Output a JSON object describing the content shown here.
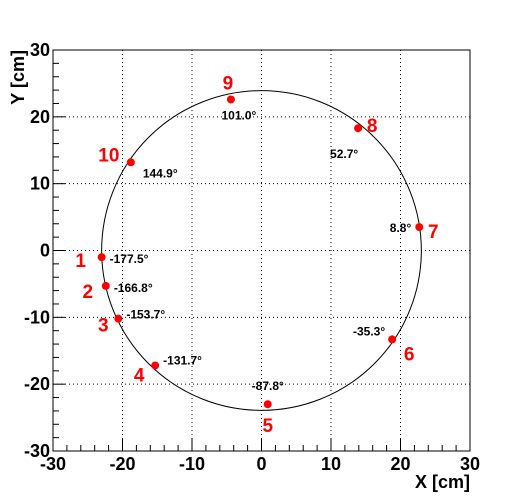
{
  "chart_data": {
    "type": "scatter",
    "title": "",
    "xlabel": "X [cm]",
    "ylabel": "Y [cm]",
    "xlim": [
      -30,
      30
    ],
    "ylim": [
      -30,
      30
    ],
    "x_ticks": [
      "-30",
      "-20",
      "-10",
      "0",
      "10",
      "20",
      "30"
    ],
    "y_ticks": [
      "-30",
      "-20",
      "-10",
      "0",
      "10",
      "20",
      "30"
    ],
    "grid": true,
    "circle": {
      "cx": 0,
      "cy": 0,
      "r": 23
    },
    "marker_color": "#ff0000",
    "label_color": "#ff0000",
    "points": [
      {
        "label": "1",
        "angle": "-177.5°",
        "x": -23.0,
        "y": -1.0
      },
      {
        "label": "2",
        "angle": "-166.8°",
        "x": -22.4,
        "y": -5.3
      },
      {
        "label": "3",
        "angle": "-153.7°",
        "x": -20.6,
        "y": -10.2
      },
      {
        "label": "4",
        "angle": "-131.7°",
        "x": -15.3,
        "y": -17.2
      },
      {
        "label": "5",
        "angle": "-87.8°",
        "x": 0.9,
        "y": -23.0
      },
      {
        "label": "6",
        "angle": "-35.3°",
        "x": 18.8,
        "y": -13.3
      },
      {
        "label": "7",
        "angle": "8.8°",
        "x": 22.7,
        "y": 3.5
      },
      {
        "label": "8",
        "angle": "52.7°",
        "x": 13.9,
        "y": 18.3
      },
      {
        "label": "9",
        "angle": "101.0°",
        "x": -4.4,
        "y": 22.6
      },
      {
        "label": "10",
        "angle": "144.9°",
        "x": -18.8,
        "y": 13.2
      }
    ]
  }
}
